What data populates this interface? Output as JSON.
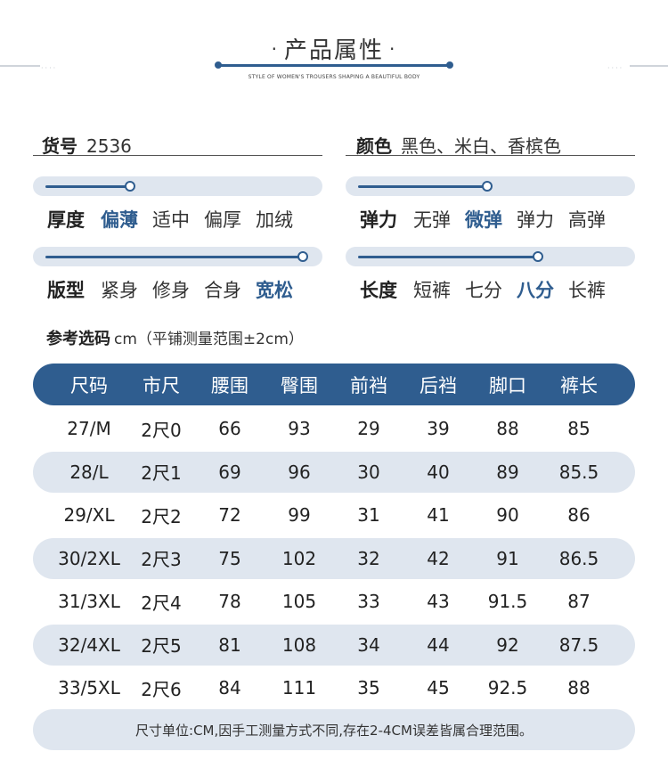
{
  "header": {
    "title": "产品属性",
    "dot": "·",
    "subtitle": "STYLE OF WOMEN'S TROUSERS SHAPING A BEAUTIFUL BODY",
    "dots": "····"
  },
  "info": {
    "item_no_label": "货号",
    "item_no_value": "2536",
    "color_label": "颜色",
    "color_value": "黑色、米白、香槟色"
  },
  "attributes": {
    "thickness": {
      "label": "厚度",
      "options": [
        "偏薄",
        "适中",
        "偏厚",
        "加绒"
      ],
      "selected_index": 0,
      "level": 0.33
    },
    "elasticity": {
      "label": "弹力",
      "options": [
        "无弹",
        "微弹",
        "弹力",
        "高弹"
      ],
      "selected_index": 1,
      "level": 0.5
    },
    "fit": {
      "label": "版型",
      "options": [
        "紧身",
        "修身",
        "合身",
        "宽松"
      ],
      "selected_index": 3,
      "level": 1.0
    },
    "length": {
      "label": "长度",
      "options": [
        "短裤",
        "七分",
        "八分",
        "长裤"
      ],
      "selected_index": 2,
      "level": 0.7
    }
  },
  "reference": {
    "label": "参考选码",
    "note": "cm（平铺测量范围±2cm）"
  },
  "size_table": {
    "columns": [
      "尺码",
      "市尺",
      "腰围",
      "臀围",
      "前裆",
      "后裆",
      "脚口",
      "裤长"
    ],
    "rows": [
      [
        "27/M",
        "2尺0",
        "66",
        "93",
        "29",
        "39",
        "88",
        "85"
      ],
      [
        "28/L",
        "2尺1",
        "69",
        "96",
        "30",
        "40",
        "89",
        "85.5"
      ],
      [
        "29/XL",
        "2尺2",
        "72",
        "99",
        "31",
        "41",
        "90",
        "86"
      ],
      [
        "30/2XL",
        "2尺3",
        "75",
        "102",
        "32",
        "42",
        "91",
        "86.5"
      ],
      [
        "31/3XL",
        "2尺4",
        "78",
        "105",
        "33",
        "43",
        "91.5",
        "87"
      ],
      [
        "32/4XL",
        "2尺5",
        "81",
        "108",
        "34",
        "44",
        "92",
        "87.5"
      ],
      [
        "33/5XL",
        "2尺6",
        "84",
        "111",
        "35",
        "45",
        "92.5",
        "88"
      ]
    ]
  },
  "footnote": "尺寸单位:CM,因手工测量方式不同,存在2-4CM误差皆属合理范围。",
  "colors": {
    "accent": "#2f5d8f",
    "band": "#dfe6ef"
  }
}
